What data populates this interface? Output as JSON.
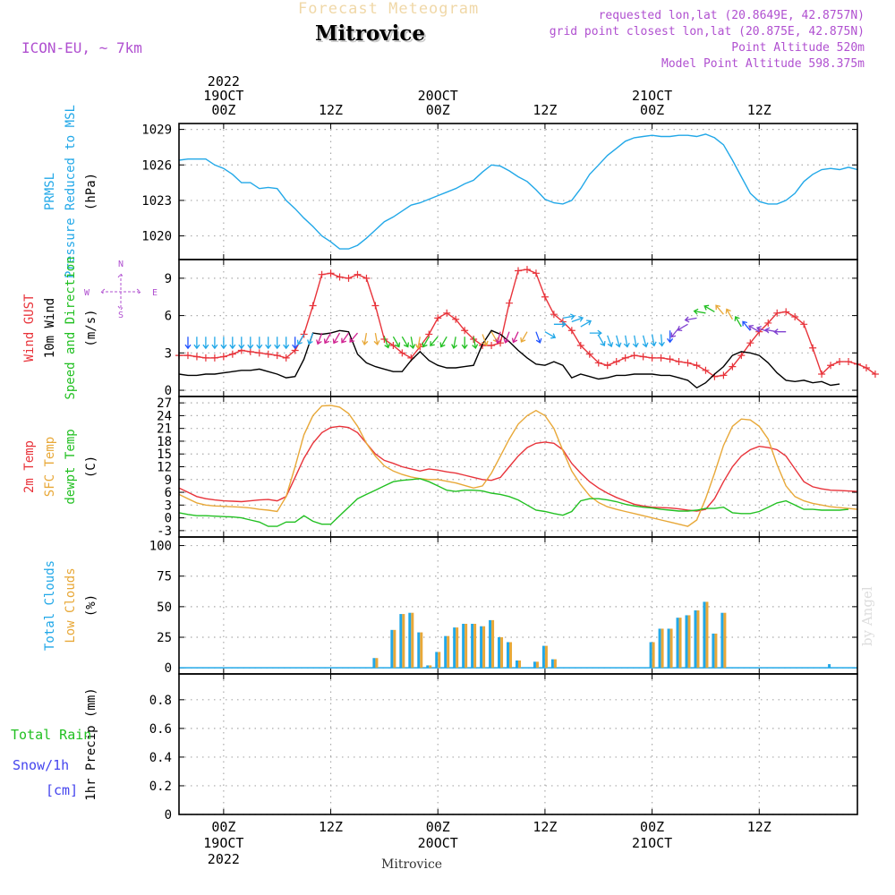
{
  "header": {
    "product": "Forecast Meteogram",
    "location": "Mitrovice",
    "model": "ICON-EU, ~ 7km",
    "requested": "requested lon,lat (20.8649E, 42.8757N)",
    "grid_point": "grid point closest lon,lat (20.875E, 42.875N)",
    "point_altitude": "Point Altitude 520m",
    "model_altitude": "Model Point Altitude 598.375m",
    "footer_location": "Mitrovice",
    "watermark": "by Angel"
  },
  "colors": {
    "pressure": "#22a8e8",
    "gust": "#e8333a",
    "wind": "#000000",
    "temp2m": "#e8333a",
    "sfc": "#e8a838",
    "dewpt": "#22c022",
    "total_cloud": "#22a8e8",
    "low_cloud": "#e8a838",
    "rain": "#22c022",
    "snow": "#4444ee",
    "model": "#b050d0"
  },
  "time_axis": {
    "top_labels": [
      {
        "hour": 0,
        "lines": [
          "2022",
          "19OCT",
          "00Z"
        ]
      },
      {
        "hour": 12,
        "lines": [
          "12Z"
        ]
      },
      {
        "hour": 24,
        "lines": [
          "20OCT",
          "00Z"
        ]
      },
      {
        "hour": 36,
        "lines": [
          "12Z"
        ]
      },
      {
        "hour": 48,
        "lines": [
          "21OCT",
          "00Z"
        ]
      },
      {
        "hour": 60,
        "lines": [
          "12Z"
        ]
      }
    ],
    "bottom_labels": [
      {
        "hour": 0,
        "lines": [
          "00Z",
          "19OCT",
          "2022"
        ]
      },
      {
        "hour": 12,
        "lines": [
          "12Z"
        ]
      },
      {
        "hour": 24,
        "lines": [
          "00Z",
          "20OCT"
        ]
      },
      {
        "hour": 36,
        "lines": [
          "12Z"
        ]
      },
      {
        "hour": 48,
        "lines": [
          "00Z",
          "21OCT"
        ]
      },
      {
        "hour": 60,
        "lines": [
          "12Z"
        ]
      }
    ]
  },
  "compass": {
    "n": "N",
    "s": "S",
    "w": "W",
    "e": "E"
  },
  "chart_data": [
    {
      "type": "line",
      "x_hours_start": -5,
      "x_step_hours": 1,
      "xlim": [
        -5,
        71
      ],
      "ylim": [
        1018,
        1029.5
      ],
      "yticks": [
        1020,
        1023,
        1026,
        1029
      ],
      "ylabel_lines": [
        {
          "text": "PRMSL",
          "color": "pressure"
        },
        {
          "text": "Pressure Reduced to MSL",
          "color": "pressure"
        },
        {
          "text": "(hPa)",
          "color": "wind"
        }
      ],
      "series": [
        {
          "name": "PRMSL",
          "color": "pressure",
          "values": [
            1026.4,
            1026.5,
            1026.5,
            1026.5,
            1026.0,
            1025.7,
            1025.2,
            1024.5,
            1024.5,
            1024.0,
            1024.1,
            1024.0,
            1023.0,
            1022.3,
            1021.5,
            1020.8,
            1020.0,
            1019.5,
            1018.9,
            1018.9,
            1019.2,
            1019.8,
            1020.5,
            1021.2,
            1021.6,
            1022.1,
            1022.6,
            1022.8,
            1023.1,
            1023.4,
            1023.7,
            1024.0,
            1024.4,
            1024.7,
            1025.4,
            1026.0,
            1025.9,
            1025.5,
            1025.0,
            1024.6,
            1023.9,
            1023.1,
            1022.8,
            1022.7,
            1023.0,
            1024.0,
            1025.2,
            1026.0,
            1026.8,
            1027.4,
            1028.0,
            1028.3,
            1028.4,
            1028.5,
            1028.4,
            1028.4,
            1028.5,
            1028.5,
            1028.4,
            1028.6,
            1028.3,
            1027.7,
            1026.4,
            1025.0,
            1023.6,
            1022.9,
            1022.7,
            1022.7,
            1023.0,
            1023.6,
            1024.6,
            1025.2,
            1025.6,
            1025.7,
            1025.6,
            1025.8,
            1025.6
          ]
        }
      ]
    },
    {
      "type": "line",
      "x_hours_start": -5,
      "x_step_hours": 1,
      "xlim": [
        -5,
        71
      ],
      "ylim": [
        -0.5,
        10.5
      ],
      "yticks": [
        0,
        3,
        6,
        9
      ],
      "ylabel_lines": [
        {
          "text": "Wind GUST",
          "color": "gust"
        },
        {
          "text": "10m Wind",
          "color": "wind"
        },
        {
          "text": "Speed and Direction",
          "color": "dewpt"
        },
        {
          "text": "(m/s)",
          "color": "wind"
        }
      ],
      "series": [
        {
          "name": "Wind GUST",
          "color": "gust",
          "marker": "+",
          "values": [
            2.8,
            2.8,
            2.7,
            2.6,
            2.6,
            2.7,
            2.9,
            3.2,
            3.1,
            3.0,
            2.9,
            2.8,
            2.6,
            3.2,
            4.5,
            6.8,
            9.3,
            9.4,
            9.1,
            9.0,
            9.3,
            9.0,
            6.8,
            4.1,
            3.6,
            3.0,
            2.6,
            3.5,
            4.5,
            5.8,
            6.2,
            5.7,
            4.8,
            4.1,
            3.6,
            3.6,
            3.8,
            7.0,
            9.6,
            9.7,
            9.4,
            7.5,
            6.1,
            5.5,
            4.8,
            3.6,
            2.9,
            2.2,
            2.0,
            2.3,
            2.6,
            2.8,
            2.7,
            2.6,
            2.6,
            2.5,
            2.3,
            2.2,
            2.0,
            1.6,
            1.1,
            1.2,
            1.9,
            2.8,
            3.8,
            4.7,
            5.4,
            6.2,
            6.3,
            5.9,
            5.3,
            3.4,
            1.3,
            2.0,
            2.3,
            2.3,
            2.1,
            1.8,
            1.3
          ]
        },
        {
          "name": "10m Wind",
          "color": "wind",
          "values": [
            1.3,
            1.2,
            1.2,
            1.3,
            1.3,
            1.4,
            1.5,
            1.6,
            1.6,
            1.7,
            1.5,
            1.3,
            1.0,
            1.1,
            2.5,
            4.6,
            4.5,
            4.6,
            4.8,
            4.7,
            2.9,
            2.2,
            1.9,
            1.7,
            1.5,
            1.5,
            2.4,
            3.1,
            2.4,
            2.0,
            1.8,
            1.8,
            1.9,
            2.0,
            3.7,
            4.8,
            4.5,
            3.9,
            3.2,
            2.6,
            2.1,
            2.0,
            2.3,
            2.0,
            1.0,
            1.3,
            1.1,
            0.9,
            1.0,
            1.2,
            1.2,
            1.3,
            1.3,
            1.3,
            1.2,
            1.2,
            1.0,
            0.8,
            0.2,
            0.6,
            1.3,
            1.9,
            2.8,
            3.1,
            3.0,
            2.8,
            2.2,
            1.4,
            0.8,
            0.7,
            0.8,
            0.6,
            0.7,
            0.4,
            0.5
          ]
        }
      ],
      "barb_y": [
        4.3,
        4.3,
        4.3,
        4.3,
        4.3,
        4.3,
        4.3,
        4.3,
        4.3,
        4.3,
        4.3,
        4.3,
        4.3,
        4.5,
        4.6,
        4.6,
        4.6,
        4.6,
        4.6,
        4.6,
        4.6,
        4.6,
        4.3,
        4.3,
        4.3,
        4.3,
        4.3,
        4.3,
        4.3,
        4.3,
        4.3,
        4.3,
        4.3,
        4.5,
        4.7,
        4.7,
        4.7,
        4.7,
        4.7,
        4.7,
        4.7,
        5.3,
        5.8,
        5.5,
        5.1,
        4.6,
        4.4,
        4.4,
        4.4,
        4.4,
        4.4,
        4.4,
        4.5,
        4.5,
        4.8,
        5.0,
        5.3,
        5.8,
        6.2,
        6.3,
        6.1,
        5.7,
        5.1,
        4.8,
        4.7,
        4.7,
        4.7,
        4.7
      ],
      "barb_x_start": -4,
      "barb_dir": [
        0,
        0,
        0,
        0,
        0,
        0,
        0,
        0,
        0,
        0,
        0,
        0,
        0,
        -30,
        -20,
        -20,
        -30,
        -30,
        -35,
        -40,
        -10,
        10,
        20,
        30,
        30,
        10,
        -10,
        -30,
        -40,
        -30,
        -10,
        0,
        10,
        20,
        30,
        -15,
        -20,
        -25,
        -30,
        20,
        60,
        90,
        100,
        110,
        120,
        90,
        30,
        20,
        15,
        10,
        10,
        15,
        10,
        5,
        0,
        -40,
        -60,
        -80,
        -100,
        -120,
        -140,
        -150,
        -150,
        -140,
        -120,
        -110,
        -100,
        -90
      ],
      "barb_color": [
        "#2255ff",
        "#22a8e8",
        "#22a8e8",
        "#22a8e8",
        "#22a8e8",
        "#22a8e8",
        "#22a8e8",
        "#22a8e8",
        "#22a8e8",
        "#22a8e8",
        "#22a8e8",
        "#22a8e8",
        "#2255ff",
        "#22a8e8",
        "#22a8e8",
        "#d02090",
        "#d02090",
        "#d02090",
        "#d02090",
        "#d02090",
        "#e8a838",
        "#e8a838",
        "#22c022",
        "#22c022",
        "#22c022",
        "#22c022",
        "#e8a838",
        "#22c022",
        "#22c022",
        "#22c022",
        "#22c022",
        "#22c022",
        "#22c022",
        "#e8a838",
        "#e8a838",
        "#d02090",
        "#d02090",
        "#d02090",
        "#e8a838",
        "#2255ff",
        "#22a8e8",
        "#22a8e8",
        "#22a8e8",
        "#22a8e8",
        "#22a8e8",
        "#22a8e8",
        "#22a8e8",
        "#22a8e8",
        "#22a8e8",
        "#22a8e8",
        "#22a8e8",
        "#22a8e8",
        "#22a8e8",
        "#22a8e8",
        "#2255ff",
        "#8040d0",
        "#8040d0",
        "#8040d0",
        "#22c022",
        "#22c022",
        "#e8a838",
        "#e8a838",
        "#22c022",
        "#2255ff",
        "#8040d0",
        "#8040d0",
        "#8040d0",
        "#8040d0"
      ]
    },
    {
      "type": "line",
      "x_hours_start": -5,
      "x_step_hours": 1,
      "xlim": [
        -5,
        71
      ],
      "ylim": [
        -4.5,
        28.5
      ],
      "yticks": [
        -3,
        0,
        3,
        6,
        9,
        12,
        15,
        18,
        21,
        24,
        27
      ],
      "ylabel_lines": [
        {
          "text": "2m Temp",
          "color": "temp2m"
        },
        {
          "text": "SFC Temp",
          "color": "sfc"
        },
        {
          "text": "dewpt Temp",
          "color": "dewpt"
        },
        {
          "text": "(C)",
          "color": "wind"
        }
      ],
      "series": [
        {
          "name": "2m Temp",
          "color": "temp2m",
          "values": [
            7.0,
            6.0,
            5.0,
            4.5,
            4.2,
            4.0,
            3.9,
            3.8,
            4.0,
            4.2,
            4.3,
            4.0,
            5.0,
            9.5,
            14.0,
            17.5,
            20.0,
            21.2,
            21.5,
            21.2,
            20.0,
            17.5,
            15.0,
            13.5,
            12.8,
            12.0,
            11.5,
            11.0,
            11.5,
            11.2,
            10.8,
            10.5,
            10.0,
            9.5,
            9.0,
            8.8,
            9.5,
            12.0,
            14.5,
            16.5,
            17.5,
            17.8,
            17.5,
            16.0,
            12.8,
            10.5,
            8.5,
            7.0,
            5.8,
            4.8,
            4.0,
            3.2,
            2.8,
            2.5,
            2.4,
            2.3,
            2.1,
            1.8,
            1.6,
            2.0,
            4.5,
            8.5,
            12.0,
            14.5,
            16.0,
            16.8,
            16.5,
            16.0,
            14.5,
            11.5,
            8.5,
            7.3,
            6.8,
            6.5,
            6.4,
            6.3,
            6.2
          ]
        },
        {
          "name": "SFC Temp",
          "color": "sfc",
          "values": [
            5.5,
            4.5,
            3.5,
            3.0,
            2.8,
            2.7,
            2.6,
            2.5,
            2.3,
            2.0,
            1.8,
            1.5,
            5.0,
            12.0,
            19.5,
            24.0,
            26.3,
            26.4,
            26.0,
            24.5,
            21.5,
            17.5,
            14.5,
            12.2,
            11.0,
            10.2,
            9.6,
            9.2,
            9.0,
            9.0,
            8.6,
            8.2,
            7.6,
            7.0,
            7.5,
            10.5,
            14.5,
            18.5,
            22.0,
            24.0,
            25.2,
            24.0,
            21.0,
            15.8,
            11.0,
            7.8,
            5.2,
            3.6,
            2.6,
            2.0,
            1.5,
            1.0,
            0.5,
            0.0,
            -0.5,
            -1.0,
            -1.5,
            -2.0,
            -0.5,
            4.5,
            10.5,
            17.0,
            21.5,
            23.2,
            23.0,
            21.5,
            18.5,
            12.5,
            7.5,
            5.0,
            4.0,
            3.4,
            3.0,
            2.6,
            2.4,
            2.2,
            2.0
          ]
        },
        {
          "name": "dewpt Temp",
          "color": "dewpt",
          "values": [
            1.2,
            0.8,
            0.5,
            0.5,
            0.4,
            0.3,
            0.2,
            0.0,
            -0.5,
            -1.0,
            -2.0,
            -2.0,
            -1.0,
            -1.0,
            0.5,
            -0.8,
            -1.5,
            -1.5,
            0.5,
            2.5,
            4.5,
            5.5,
            6.5,
            7.5,
            8.5,
            8.8,
            9.0,
            9.2,
            8.5,
            7.5,
            6.5,
            6.2,
            6.5,
            6.5,
            6.3,
            5.8,
            5.5,
            5.0,
            4.2,
            3.0,
            1.8,
            1.5,
            1.0,
            0.6,
            1.5,
            4.0,
            4.5,
            4.5,
            4.2,
            3.8,
            3.2,
            2.8,
            2.5,
            2.3,
            2.0,
            1.8,
            1.6,
            1.6,
            1.8,
            2.2,
            2.2,
            2.5,
            1.2,
            1.0,
            1.0,
            1.5,
            2.5,
            3.5,
            4.0,
            3.0,
            2.0,
            2.0,
            1.8,
            1.8,
            1.8,
            2.0
          ]
        }
      ]
    },
    {
      "type": "bar",
      "x_hours_start": -5,
      "x_step_hours": 1,
      "xlim": [
        -5,
        71
      ],
      "ylim": [
        -5,
        107
      ],
      "yticks": [
        0,
        25,
        50,
        75,
        100
      ],
      "ylabel_lines": [
        {
          "text": "Total Clouds",
          "color": "total_cloud"
        },
        {
          "text": "Low Clouds",
          "color": "low_cloud"
        },
        {
          "text": "(%)",
          "color": "wind"
        }
      ],
      "series": [
        {
          "name": "Total Clouds",
          "color": "total_cloud",
          "values": [
            0,
            0,
            0,
            0,
            0,
            0,
            0,
            0,
            0,
            0,
            0,
            0,
            0,
            0,
            0,
            0,
            0,
            0,
            0,
            0,
            0,
            0,
            8,
            0,
            31,
            44,
            45,
            29,
            2,
            13,
            26,
            33,
            36,
            36,
            34,
            39,
            25,
            21,
            6,
            0,
            5,
            18,
            7,
            0,
            0,
            0,
            0,
            0,
            0,
            0,
            0,
            0,
            0,
            21,
            32,
            32,
            41,
            43,
            47,
            54,
            28,
            45,
            0,
            0,
            0,
            0,
            0,
            0,
            0,
            0,
            0,
            0,
            0,
            3,
            0,
            0,
            0
          ]
        },
        {
          "name": "Low Clouds",
          "color": "low_cloud",
          "values": [
            0,
            0,
            0,
            0,
            0,
            0,
            0,
            0,
            0,
            0,
            0,
            0,
            0,
            0,
            0,
            0,
            0,
            0,
            0,
            0,
            0,
            0,
            8,
            0,
            31,
            44,
            45,
            29,
            2,
            13,
            26,
            33,
            36,
            36,
            34,
            39,
            25,
            21,
            6,
            0,
            5,
            18,
            7,
            0,
            0,
            0,
            0,
            0,
            0,
            0,
            0,
            0,
            0,
            21,
            32,
            32,
            41,
            43,
            47,
            54,
            28,
            45,
            0,
            0,
            0,
            0,
            0,
            0,
            0,
            0,
            0,
            0,
            0,
            0,
            0,
            0,
            0
          ]
        }
      ]
    },
    {
      "type": "bar",
      "x_hours_start": -5,
      "x_step_hours": 1,
      "xlim": [
        -5,
        71
      ],
      "ylim": [
        0,
        0.98
      ],
      "yticks": [
        0,
        0.2,
        0.4,
        0.6,
        0.8
      ],
      "ylabel_lines": [
        {
          "text": "1hr Precip (mm)",
          "color": "wind"
        }
      ],
      "legend_lines": [
        {
          "text": "Total  Rain",
          "color": "rain"
        },
        {
          "text": "Snow/1h",
          "color": "snow"
        },
        {
          "text": "[cm]",
          "color": "snow"
        }
      ],
      "series": [
        {
          "name": "Total Rain",
          "color": "rain",
          "values": []
        },
        {
          "name": "Snow/1h",
          "color": "snow",
          "values": []
        }
      ]
    }
  ]
}
